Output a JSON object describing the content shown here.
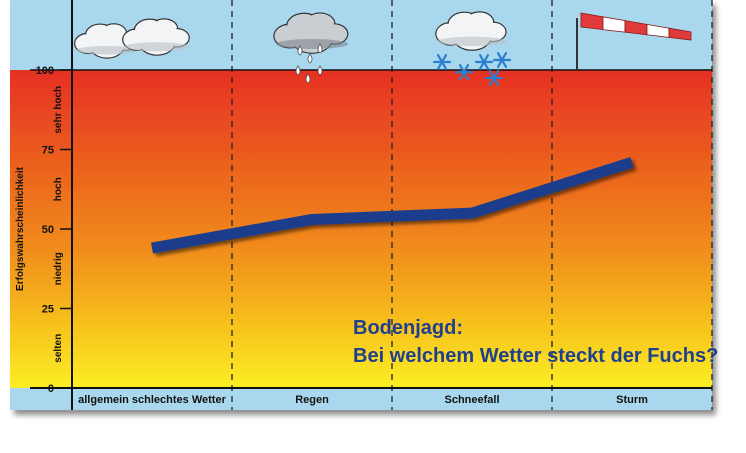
{
  "chart_data": {
    "type": "line",
    "title": "Bodenjagd:",
    "subtitle": "Bei welchem Wetter steckt der Fuchs?",
    "ylabel": "Erfolgswahrscheinlichkeit",
    "ylim": [
      0,
      100
    ],
    "yticks": [
      "0",
      "25",
      "50",
      "75",
      "100"
    ],
    "y_bands": [
      "selten",
      "niedrig",
      "hoch",
      "sehr hoch"
    ],
    "categories": [
      "allgemein schlechtes Wetter",
      "Regen",
      "Schneefall",
      "Sturm"
    ],
    "series": [
      {
        "values": [
          44,
          53,
          55,
          71
        ]
      }
    ],
    "weather_icons": [
      "cloud-icon",
      "rain-cloud-icon",
      "snow-cloud-icon",
      "windsock-icon"
    ],
    "grid": true,
    "colors": {
      "sky": "#a9d8ee",
      "gradient_top": "#e63022",
      "gradient_mid": "#f08a1c",
      "gradient_bottom": "#fcee21",
      "line": "#1f3c8c",
      "title": "#1f3f8f"
    }
  }
}
